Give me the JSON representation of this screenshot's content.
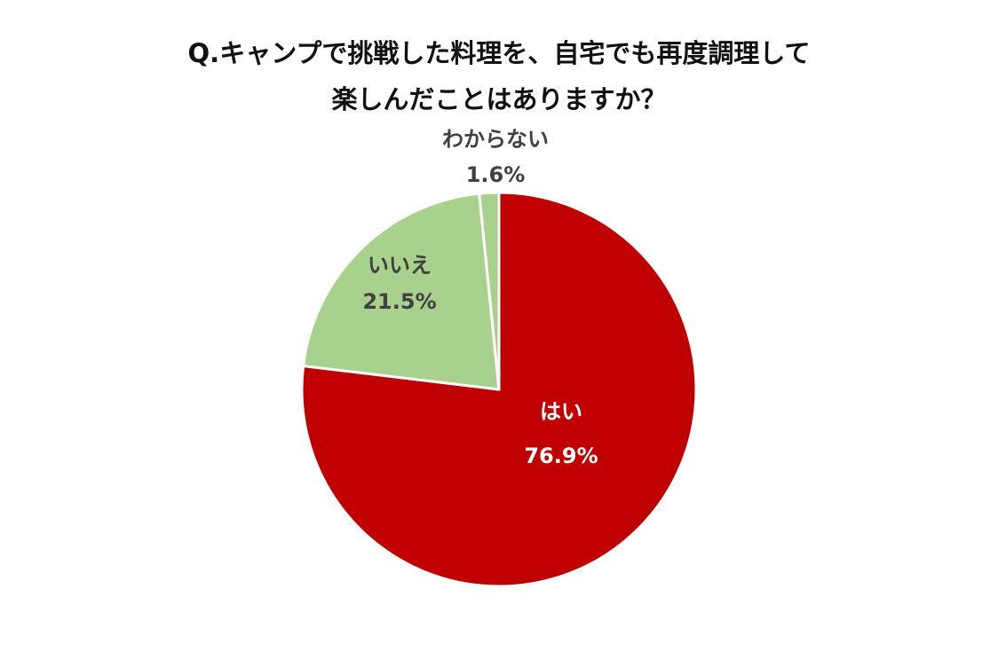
{
  "chart_data": {
    "type": "pie",
    "title": [
      "Q.キャンプで挑戦した料理を、自宅でも再度調理して",
      "楽しんだことはありますか？"
    ],
    "slices": [
      {
        "label": "はい",
        "value": 76.9,
        "value_label": "76.9%",
        "color": "#c00000",
        "text_color": "#ffffff"
      },
      {
        "label": "いいえ",
        "value": 21.5,
        "value_label": "21.5%",
        "color": "#a9d18e",
        "text_color": "#404040"
      },
      {
        "label": "わからない",
        "value": 1.6,
        "value_label": "1.6%",
        "color": "#a9d18e",
        "text_color": "#404040"
      }
    ],
    "start_angle": "12 o'clock",
    "direction": "clockwise",
    "legend": "none"
  }
}
